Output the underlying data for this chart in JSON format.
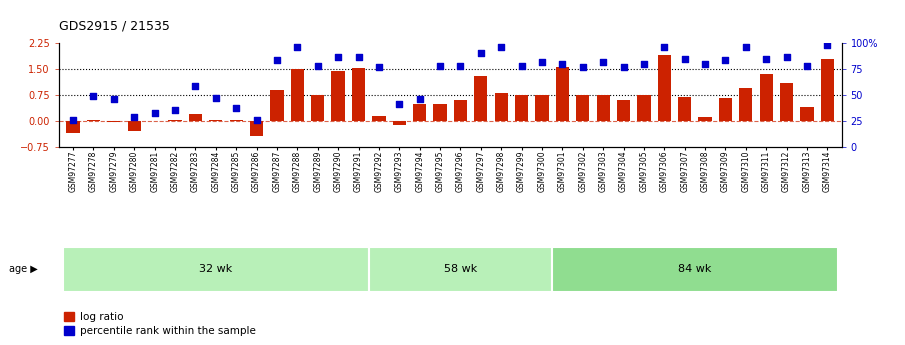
{
  "title": "GDS2915 / 21535",
  "samples": [
    "GSM97277",
    "GSM97278",
    "GSM97279",
    "GSM97280",
    "GSM97281",
    "GSM97282",
    "GSM97283",
    "GSM97284",
    "GSM97285",
    "GSM97286",
    "GSM97287",
    "GSM97288",
    "GSM97289",
    "GSM97290",
    "GSM97291",
    "GSM97292",
    "GSM97293",
    "GSM97294",
    "GSM97295",
    "GSM97296",
    "GSM97297",
    "GSM97298",
    "GSM97299",
    "GSM97300",
    "GSM97301",
    "GSM97302",
    "GSM97303",
    "GSM97304",
    "GSM97305",
    "GSM97306",
    "GSM97307",
    "GSM97308",
    "GSM97309",
    "GSM97310",
    "GSM97311",
    "GSM97312",
    "GSM97313",
    "GSM97314"
  ],
  "log_ratio": [
    -0.35,
    0.03,
    -0.05,
    -0.3,
    -0.02,
    0.02,
    0.2,
    0.02,
    0.02,
    -0.45,
    0.9,
    1.5,
    0.75,
    1.45,
    1.52,
    0.14,
    -0.12,
    0.5,
    0.5,
    0.6,
    1.3,
    0.8,
    0.75,
    0.75,
    1.55,
    0.75,
    0.75,
    0.6,
    0.75,
    1.9,
    0.7,
    0.12,
    0.65,
    0.95,
    1.35,
    1.1,
    0.4,
    1.8
  ],
  "percentile": [
    0.03,
    0.72,
    0.63,
    0.1,
    0.23,
    0.3,
    1.0,
    0.65,
    0.38,
    0.02,
    1.75,
    2.15,
    1.6,
    1.85,
    1.85,
    1.55,
    0.48,
    0.63,
    1.58,
    1.58,
    1.95,
    2.15,
    1.6,
    1.7,
    1.65,
    1.55,
    1.7,
    1.55,
    1.65,
    2.15,
    1.8,
    1.65,
    1.75,
    2.15,
    1.8,
    1.85,
    1.58,
    2.2
  ],
  "groups": [
    {
      "label": "32 wk",
      "start": 0,
      "end": 15
    },
    {
      "label": "58 wk",
      "start": 15,
      "end": 24
    },
    {
      "label": "84 wk",
      "start": 24,
      "end": 38
    }
  ],
  "group_colors": [
    "#b8f0b8",
    "#b8f0b8",
    "#90dd90"
  ],
  "bar_color": "#CC2200",
  "dot_color": "#0000CC",
  "ylim_left": [
    -0.75,
    2.25
  ],
  "ylim_right": [
    0,
    100
  ],
  "yticks_left": [
    -0.75,
    0,
    0.75,
    1.5,
    2.25
  ],
  "yticks_right": [
    0,
    25,
    50,
    75,
    100
  ],
  "hlines": [
    0.75,
    1.5
  ],
  "age_label": "age",
  "legend_log_ratio": "log ratio",
  "legend_percentile": "percentile rank within the sample"
}
